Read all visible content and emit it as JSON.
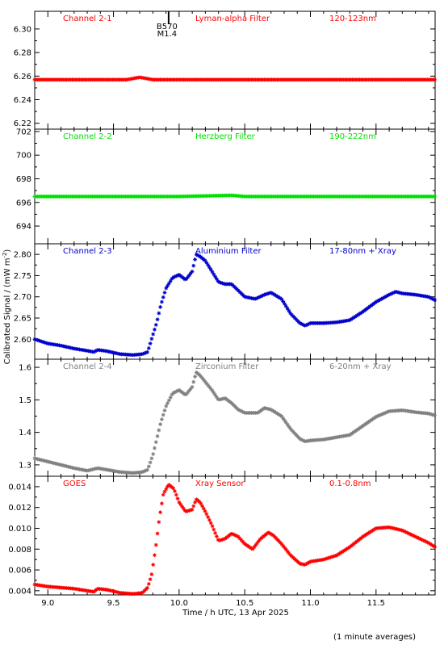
{
  "chart_data": {
    "type": "scatter",
    "xlabel": "Time / h UTC, 13 Apr 2025",
    "ylabel": "Calibrated Signal / (mW m",
    "ylabel_sup": "-2",
    "ylabel_close": ")",
    "footnote": "(1 minute averages)",
    "xlim": [
      8.9,
      11.95
    ],
    "xticks": [
      9.0,
      9.5,
      10.0,
      10.5,
      11.0,
      11.5
    ],
    "xtick_labels": [
      "9.0",
      "9.5",
      "10.0",
      "10.5",
      "11.0",
      "11.5"
    ],
    "marker": "*",
    "panels": [
      {
        "channel": "Channel 2-1",
        "filter": "Lyman-alpha Filter",
        "band": "120-123nm",
        "color": "#ff0000",
        "ylim": [
          6.215,
          6.315
        ],
        "yticks": [
          6.22,
          6.24,
          6.26,
          6.28,
          6.3
        ],
        "ytick_labels": [
          "6.22",
          "6.24",
          "6.26",
          "6.28",
          "6.30"
        ],
        "flare_marker": {
          "x": 9.92,
          "label1": "B570",
          "label2": "M1.4"
        },
        "points": [
          [
            8.9,
            6.257
          ],
          [
            9.6,
            6.257
          ],
          [
            9.65,
            6.258
          ],
          [
            9.7,
            6.259
          ],
          [
            9.75,
            6.258
          ],
          [
            9.8,
            6.257
          ],
          [
            10.4,
            6.257
          ],
          [
            10.6,
            6.257
          ],
          [
            11.95,
            6.257
          ]
        ]
      },
      {
        "channel": "Channel 2-2",
        "filter": "Herzberg Filter",
        "band": "190-222nm",
        "color": "#00e000",
        "ylim": [
          692.5,
          702.2
        ],
        "yticks": [
          694,
          696,
          698,
          700,
          702
        ],
        "ytick_labels": [
          "694",
          "696",
          "698",
          "700",
          "702"
        ],
        "points": [
          [
            8.9,
            696.5
          ],
          [
            10.0,
            696.5
          ],
          [
            10.4,
            696.6
          ],
          [
            10.5,
            696.5
          ],
          [
            11.95,
            696.5
          ]
        ]
      },
      {
        "channel": "Channel 2-3",
        "filter": "Aluminium Filter",
        "band": "17-80nm + Xray",
        "color": "#0000cc",
        "ylim": [
          2.553,
          2.825
        ],
        "yticks": [
          2.6,
          2.65,
          2.7,
          2.75,
          2.8
        ],
        "ytick_labels": [
          "2.60",
          "2.65",
          "2.70",
          "2.75",
          "2.80"
        ],
        "points": [
          [
            8.9,
            2.6
          ],
          [
            9.0,
            2.59
          ],
          [
            9.1,
            2.585
          ],
          [
            9.2,
            2.578
          ],
          [
            9.3,
            2.573
          ],
          [
            9.35,
            2.57
          ],
          [
            9.38,
            2.575
          ],
          [
            9.45,
            2.572
          ],
          [
            9.55,
            2.565
          ],
          [
            9.65,
            2.563
          ],
          [
            9.72,
            2.565
          ],
          [
            9.76,
            2.57
          ],
          [
            9.8,
            2.61
          ],
          [
            9.83,
            2.64
          ],
          [
            9.86,
            2.68
          ],
          [
            9.9,
            2.72
          ],
          [
            9.95,
            2.745
          ],
          [
            10.0,
            2.752
          ],
          [
            10.05,
            2.74
          ],
          [
            10.1,
            2.76
          ],
          [
            10.13,
            2.8
          ],
          [
            10.16,
            2.795
          ],
          [
            10.2,
            2.785
          ],
          [
            10.25,
            2.76
          ],
          [
            10.3,
            2.735
          ],
          [
            10.35,
            2.73
          ],
          [
            10.4,
            2.73
          ],
          [
            10.45,
            2.715
          ],
          [
            10.5,
            2.7
          ],
          [
            10.58,
            2.695
          ],
          [
            10.65,
            2.705
          ],
          [
            10.7,
            2.71
          ],
          [
            10.78,
            2.695
          ],
          [
            10.85,
            2.66
          ],
          [
            10.92,
            2.638
          ],
          [
            10.96,
            2.632
          ],
          [
            11.0,
            2.638
          ],
          [
            11.1,
            2.638
          ],
          [
            11.2,
            2.64
          ],
          [
            11.3,
            2.645
          ],
          [
            11.4,
            2.665
          ],
          [
            11.5,
            2.688
          ],
          [
            11.6,
            2.705
          ],
          [
            11.65,
            2.712
          ],
          [
            11.7,
            2.708
          ],
          [
            11.8,
            2.705
          ],
          [
            11.9,
            2.7
          ],
          [
            11.95,
            2.692
          ]
        ]
      },
      {
        "channel": "Channel 2-4",
        "filter": "Zirconium Filter",
        "band": "6-20nm + Xray",
        "color": "#808080",
        "ylim": [
          1.265,
          1.625
        ],
        "yticks": [
          1.3,
          1.4,
          1.5,
          1.6
        ],
        "ytick_labels": [
          "1.3",
          "1.4",
          "1.5",
          "1.6"
        ],
        "points": [
          [
            8.9,
            1.32
          ],
          [
            9.0,
            1.31
          ],
          [
            9.1,
            1.3
          ],
          [
            9.2,
            1.29
          ],
          [
            9.3,
            1.282
          ],
          [
            9.38,
            1.29
          ],
          [
            9.45,
            1.285
          ],
          [
            9.55,
            1.278
          ],
          [
            9.65,
            1.275
          ],
          [
            9.72,
            1.278
          ],
          [
            9.76,
            1.285
          ],
          [
            9.8,
            1.33
          ],
          [
            9.83,
            1.38
          ],
          [
            9.86,
            1.43
          ],
          [
            9.9,
            1.48
          ],
          [
            9.95,
            1.52
          ],
          [
            10.0,
            1.53
          ],
          [
            10.05,
            1.515
          ],
          [
            10.1,
            1.54
          ],
          [
            10.13,
            1.585
          ],
          [
            10.16,
            1.575
          ],
          [
            10.2,
            1.555
          ],
          [
            10.25,
            1.53
          ],
          [
            10.3,
            1.5
          ],
          [
            10.35,
            1.505
          ],
          [
            10.4,
            1.49
          ],
          [
            10.45,
            1.47
          ],
          [
            10.5,
            1.46
          ],
          [
            10.6,
            1.46
          ],
          [
            10.65,
            1.475
          ],
          [
            10.7,
            1.47
          ],
          [
            10.78,
            1.45
          ],
          [
            10.85,
            1.41
          ],
          [
            10.92,
            1.38
          ],
          [
            10.96,
            1.372
          ],
          [
            11.0,
            1.375
          ],
          [
            11.1,
            1.378
          ],
          [
            11.2,
            1.385
          ],
          [
            11.3,
            1.392
          ],
          [
            11.4,
            1.42
          ],
          [
            11.5,
            1.448
          ],
          [
            11.6,
            1.465
          ],
          [
            11.7,
            1.468
          ],
          [
            11.8,
            1.462
          ],
          [
            11.9,
            1.458
          ],
          [
            11.95,
            1.452
          ]
        ]
      },
      {
        "channel": "GOES",
        "filter": "Xray Sensor",
        "band": "0.1-0.8nm",
        "color": "#ff0000",
        "ylim": [
          0.0036,
          0.015
        ],
        "yticks": [
          0.004,
          0.006,
          0.008,
          0.01,
          0.012,
          0.014
        ],
        "ytick_labels": [
          "0.004",
          "0.006",
          "0.008",
          "0.010",
          "0.012",
          "0.014"
        ],
        "points": [
          [
            8.9,
            0.0046
          ],
          [
            9.0,
            0.0044
          ],
          [
            9.1,
            0.0043
          ],
          [
            9.2,
            0.0042
          ],
          [
            9.3,
            0.004
          ],
          [
            9.35,
            0.0039
          ],
          [
            9.38,
            0.0042
          ],
          [
            9.45,
            0.0041
          ],
          [
            9.55,
            0.0038
          ],
          [
            9.65,
            0.0037
          ],
          [
            9.72,
            0.0038
          ],
          [
            9.76,
            0.0043
          ],
          [
            9.79,
            0.0055
          ],
          [
            9.82,
            0.008
          ],
          [
            9.85,
            0.011
          ],
          [
            9.88,
            0.0133
          ],
          [
            9.92,
            0.0142
          ],
          [
            9.96,
            0.0138
          ],
          [
            10.0,
            0.0125
          ],
          [
            10.05,
            0.0116
          ],
          [
            10.1,
            0.0118
          ],
          [
            10.13,
            0.0128
          ],
          [
            10.16,
            0.0125
          ],
          [
            10.2,
            0.0116
          ],
          [
            10.25,
            0.0103
          ],
          [
            10.3,
            0.0088
          ],
          [
            10.35,
            0.009
          ],
          [
            10.4,
            0.0095
          ],
          [
            10.45,
            0.0092
          ],
          [
            10.5,
            0.0085
          ],
          [
            10.56,
            0.008
          ],
          [
            10.62,
            0.009
          ],
          [
            10.68,
            0.0096
          ],
          [
            10.72,
            0.0093
          ],
          [
            10.78,
            0.0085
          ],
          [
            10.85,
            0.0074
          ],
          [
            10.92,
            0.0066
          ],
          [
            10.96,
            0.0065
          ],
          [
            11.0,
            0.0068
          ],
          [
            11.1,
            0.007
          ],
          [
            11.2,
            0.0074
          ],
          [
            11.3,
            0.0082
          ],
          [
            11.4,
            0.0092
          ],
          [
            11.5,
            0.01
          ],
          [
            11.6,
            0.0101
          ],
          [
            11.7,
            0.0098
          ],
          [
            11.8,
            0.0092
          ],
          [
            11.9,
            0.0086
          ],
          [
            11.95,
            0.0082
          ]
        ]
      }
    ]
  }
}
